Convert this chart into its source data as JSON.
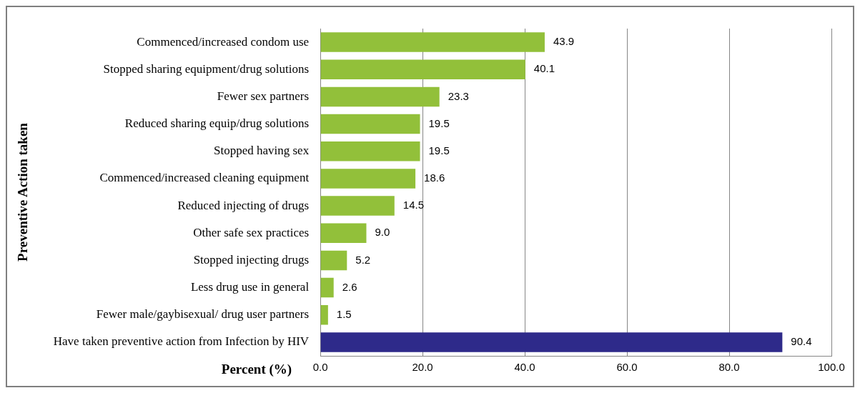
{
  "chart_data": {
    "type": "bar",
    "orientation": "horizontal",
    "xlabel": "Percent (%)",
    "ylabel": "Preventive Action taken",
    "categories": [
      "Commenced/increased condom use",
      "Stopped sharing equipment/drug solutions",
      "Fewer sex partners",
      "Reduced sharing equip/drug solutions",
      "Stopped having sex",
      "Commenced/increased cleaning equipment",
      "Reduced injecting of drugs",
      "Other safe sex practices",
      "Stopped injecting drugs",
      "Less drug use in general",
      "Fewer male/gaybisexual/ drug user partners",
      "Have taken preventive action from Infection by HIV"
    ],
    "values": [
      43.9,
      40.1,
      23.3,
      19.5,
      19.5,
      18.6,
      14.5,
      9.0,
      5.2,
      2.6,
      1.5,
      90.4
    ],
    "value_labels": [
      "43.9",
      "40.1",
      "23.3",
      "19.5",
      "19.5",
      "18.6",
      "14.5",
      "9.0",
      "5.2",
      "2.6",
      "1.5",
      "90.4"
    ],
    "colors": [
      "#92c03a",
      "#92c03a",
      "#92c03a",
      "#92c03a",
      "#92c03a",
      "#92c03a",
      "#92c03a",
      "#92c03a",
      "#92c03a",
      "#92c03a",
      "#92c03a",
      "#2e2a8a"
    ],
    "xlim": [
      0,
      100
    ],
    "xticks": [
      {
        "value": 0,
        "label": "0.0"
      },
      {
        "value": 20,
        "label": "20.0"
      },
      {
        "value": 40,
        "label": "40.0"
      },
      {
        "value": 60,
        "label": "60.0"
      },
      {
        "value": 80,
        "label": "80.0"
      },
      {
        "value": 100,
        "label": "100.0"
      }
    ],
    "grid": "x"
  }
}
